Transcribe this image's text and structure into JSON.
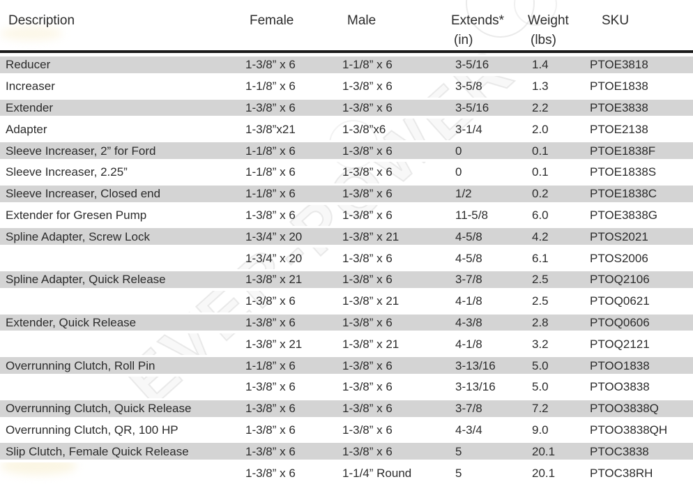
{
  "watermark": {
    "text": "EVER-POWER"
  },
  "table": {
    "header": {
      "description": "Description",
      "female": "Female",
      "male": "Male",
      "extends": "Extends*",
      "extends_sub": "(in)",
      "weight": "Weight",
      "weight_sub": "(lbs)",
      "sku": "SKU"
    },
    "colors": {
      "stripe": "#d4d4d4",
      "header_rule": "#1b1b1b",
      "text": "#2b2b2b"
    },
    "rows": [
      {
        "description": "Reducer",
        "female": "1-3/8” x 6",
        "male": "1-1/8” x 6",
        "extends": "3-5/16",
        "weight": "1.4",
        "sku": "PTOE3818"
      },
      {
        "description": "Increaser",
        "female": "1-1/8” x 6",
        "male": "1-3/8” x 6",
        "extends": "3-5/8",
        "weight": "1.3",
        "sku": "PTOE1838"
      },
      {
        "description": "Extender",
        "female": "1-3/8” x 6",
        "male": "1-3/8” x 6",
        "extends": "3-5/16",
        "weight": "2.2",
        "sku": "PTOE3838"
      },
      {
        "description": "Adapter",
        "female": "1-3/8”x21",
        "male": "1-3/8”x6",
        "extends": "3-1/4",
        "weight": "2.0",
        "sku": "PTOE2138"
      },
      {
        "description": "Sleeve Increaser, 2” for Ford",
        "female": "1-1/8” x 6",
        "male": "1-3/8” x 6",
        "extends": "0",
        "weight": "0.1",
        "sku": "PTOE1838F"
      },
      {
        "description": "Sleeve Increaser, 2.25”",
        "female": "1-1/8” x 6",
        "male": "1-3/8” x 6",
        "extends": "0",
        "weight": "0.1",
        "sku": "PTOE1838S"
      },
      {
        "description": "Sleeve Increaser, Closed end",
        "female": "1-1/8” x 6",
        "male": "1-3/8” x 6",
        "extends": "1/2",
        "weight": "0.2",
        "sku": "PTOE1838C"
      },
      {
        "description": "Extender for Gresen Pump",
        "female": "1-3/8” x 6",
        "male": "1-3/8” x 6",
        "extends": "11-5/8",
        "weight": "6.0",
        "sku": "PTOE3838G"
      },
      {
        "description": "Spline Adapter, Screw Lock",
        "female": "1-3/4” x 20",
        "male": "1-3/8” x 21",
        "extends": "4-5/8",
        "weight": "4.2",
        "sku": "PTOS2021"
      },
      {
        "description": "",
        "female": "1-3/4” x 20",
        "male": "1-3/8” x 6",
        "extends": "4-5/8",
        "weight": "6.1",
        "sku": "PTOS2006"
      },
      {
        "description": "Spline Adapter, Quick Release",
        "female": "1-3/8” x 21",
        "male": "1-3/8” x 6",
        "extends": "3-7/8",
        "weight": "2.5",
        "sku": "PTOQ2106"
      },
      {
        "description": "",
        "female": "1-3/8” x 6",
        "male": "1-3/8” x 21",
        "extends": "4-1/8",
        "weight": "2.5",
        "sku": "PTOQ0621"
      },
      {
        "description": "Extender, Quick Release",
        "female": "1-3/8” x 6",
        "male": "1-3/8” x 6",
        "extends": "4-3/8",
        "weight": "2.8",
        "sku": "PTOQ0606"
      },
      {
        "description": "",
        "female": "1-3/8” x 21",
        "male": "1-3/8” x 21",
        "extends": "4-1/8",
        "weight": "3.2",
        "sku": "PTOQ2121"
      },
      {
        "description": "Overrunning Clutch, Roll Pin",
        "female": "1-1/8” x 6",
        "male": "1-3/8” x 6",
        "extends": "3-13/16",
        "weight": "5.0",
        "sku": "PTOO1838"
      },
      {
        "description": "",
        "female": "1-3/8” x 6",
        "male": "1-3/8” x 6",
        "extends": "3-13/16",
        "weight": "5.0",
        "sku": "PTOO3838"
      },
      {
        "description": "Overrunning Clutch, Quick Release",
        "female": "1-3/8” x 6",
        "male": "1-3/8” x 6",
        "extends": "3-7/8",
        "weight": "7.2",
        "sku": "PTOO3838Q"
      },
      {
        "description": "Overrunning Clutch, QR, 100 HP",
        "female": "1-3/8” x 6",
        "male": "1-3/8” x 6",
        "extends": "4-3/4",
        "weight": "9.0",
        "sku": "PTOO3838QH"
      },
      {
        "description": "Slip Clutch, Female Quick Release",
        "female": "1-3/8” x 6",
        "male": "1-3/8” x 6",
        "extends": "5",
        "weight": "20.1",
        "sku": "PTOC3838"
      },
      {
        "description": "",
        "female": "1-3/8” x 6",
        "male": "1-1/4” Round",
        "extends": "5",
        "weight": "20.1",
        "sku": "PTOC38RH"
      }
    ]
  }
}
